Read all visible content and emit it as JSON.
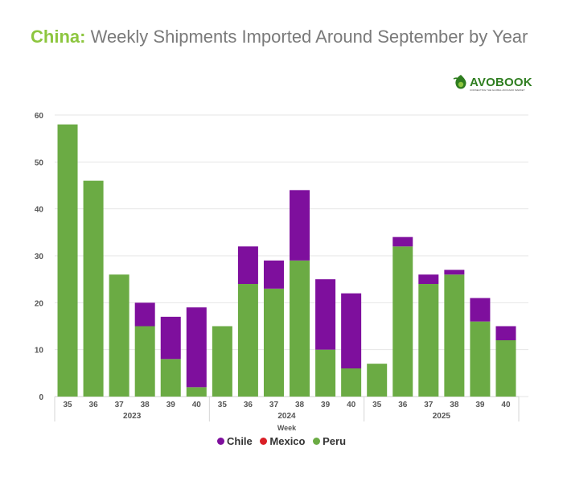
{
  "title": {
    "highlight": "China:",
    "rest": "Weekly Shipments Imported Around September by Year"
  },
  "logo": {
    "brand": "AVOBOOK",
    "tagline": "CONNECTING THE GLOBAL AVOCADO MARKET"
  },
  "colors": {
    "Chile": "#7e0f9d",
    "Mexico": "#d91f26",
    "Peru": "#6bab44",
    "title_highlight": "#8dc63f"
  },
  "chart_data": {
    "type": "bar",
    "stacked": true,
    "title": "China: Weekly Shipments Imported Around September by Year",
    "xlabel": "Week",
    "ylabel": "",
    "ylim": [
      0,
      60
    ],
    "yticks": [
      0,
      10,
      20,
      30,
      40,
      50,
      60
    ],
    "grid": true,
    "legend_position": "bottom",
    "groups": [
      {
        "label": "2023",
        "weeks": [
          "35",
          "36",
          "37",
          "38",
          "39",
          "40"
        ]
      },
      {
        "label": "2024",
        "weeks": [
          "35",
          "36",
          "37",
          "38",
          "39",
          "40"
        ]
      },
      {
        "label": "2025",
        "weeks": [
          "35",
          "36",
          "37",
          "38",
          "39",
          "40"
        ]
      }
    ],
    "series": [
      {
        "name": "Peru",
        "values": [
          58,
          46,
          26,
          15,
          8,
          2,
          15,
          24,
          23,
          29,
          10,
          6,
          7,
          32,
          24,
          26,
          16,
          12
        ]
      },
      {
        "name": "Mexico",
        "values": [
          0,
          0,
          0,
          0,
          0,
          0,
          0,
          0,
          0,
          0,
          0,
          0,
          0,
          0,
          0,
          0,
          0,
          0
        ]
      },
      {
        "name": "Chile",
        "values": [
          0,
          0,
          0,
          5,
          9,
          17,
          0,
          8,
          6,
          15,
          15,
          16,
          0,
          2,
          2,
          1,
          5,
          3
        ]
      }
    ],
    "legend": [
      "Chile",
      "Mexico",
      "Peru"
    ]
  }
}
